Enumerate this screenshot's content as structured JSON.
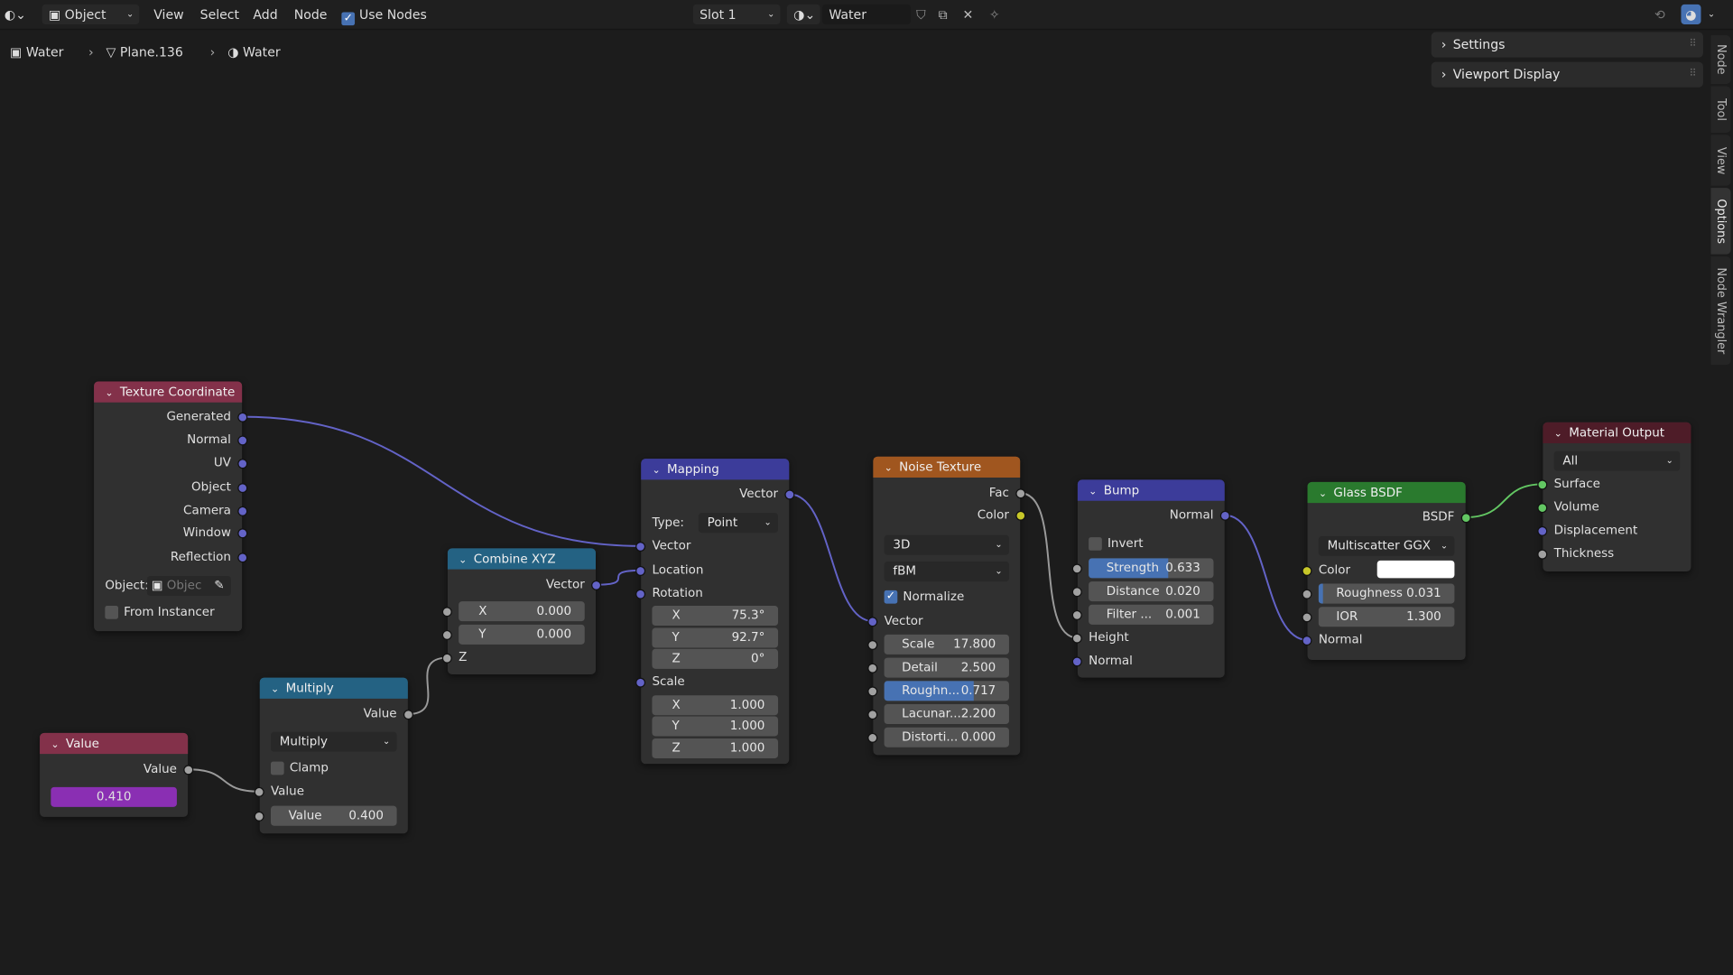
{
  "topbar": {
    "editor_type_icon": "node-editor-icon",
    "mode": "Object",
    "menus": [
      "View",
      "Select",
      "Add",
      "Node"
    ],
    "use_nodes_label": "Use Nodes",
    "use_nodes": true,
    "slot": "Slot 1",
    "material_name": "Water"
  },
  "breadcrumb": [
    "Water",
    "Plane.136",
    "Water"
  ],
  "sidebar": {
    "panels": [
      "Settings",
      "Viewport Display"
    ],
    "tabs": [
      "Node",
      "Tool",
      "View",
      "Options",
      "Node Wrangler"
    ],
    "active_tab": "Options"
  },
  "socket_colors": {
    "vector": "#6363c7",
    "float": "#a1a1a1",
    "color": "#c7c729",
    "shader": "#63c763"
  },
  "nodes": [
    {
      "id": "texcoord",
      "title": "Texture Coordinate",
      "color": "#83314a",
      "rows": [
        {
          "t": "out",
          "label": "Generated",
          "s": "vector"
        },
        {
          "t": "out",
          "label": "Normal",
          "s": "vector"
        },
        {
          "t": "out",
          "label": "UV",
          "s": "vector"
        },
        {
          "t": "out",
          "label": "Object",
          "s": "vector"
        },
        {
          "t": "out",
          "label": "Camera",
          "s": "vector"
        },
        {
          "t": "out",
          "label": "Window",
          "s": "vector"
        },
        {
          "t": "out",
          "label": "Reflection",
          "s": "vector"
        },
        {
          "t": "obj",
          "label": "Object:",
          "placeholder": "Objec"
        },
        {
          "t": "check",
          "label": "From Instancer",
          "checked": false
        }
      ]
    },
    {
      "id": "value",
      "title": "Value",
      "color": "#83314a",
      "rows": [
        {
          "t": "out",
          "label": "Value",
          "s": "float"
        },
        {
          "t": "vfield",
          "value": "0.410"
        }
      ]
    },
    {
      "id": "multiply",
      "title": "Multiply",
      "color": "#246283",
      "rows": [
        {
          "t": "out",
          "label": "Value",
          "s": "float"
        },
        {
          "t": "dd",
          "value": "Multiply"
        },
        {
          "t": "check",
          "label": "Clamp",
          "checked": false
        },
        {
          "t": "in",
          "label": "Value",
          "s": "float"
        },
        {
          "t": "field",
          "label": "Value",
          "value": "0.400",
          "s": "float"
        }
      ]
    },
    {
      "id": "combine",
      "title": "Combine XYZ",
      "color": "#246283",
      "rows": [
        {
          "t": "out",
          "label": "Vector",
          "s": "vector"
        },
        {
          "t": "field",
          "label": "X",
          "value": "0.000",
          "s": "float",
          "xyz": true
        },
        {
          "t": "field",
          "label": "Y",
          "value": "0.000",
          "s": "float",
          "xyz": true
        },
        {
          "t": "in",
          "label": "Z",
          "s": "float"
        }
      ]
    },
    {
      "id": "mapping",
      "title": "Mapping",
      "color": "#3c3c9a",
      "rows": [
        {
          "t": "out",
          "label": "Vector",
          "s": "vector"
        },
        {
          "t": "dd",
          "label": "Type:",
          "value": "Point"
        },
        {
          "t": "in",
          "label": "Vector",
          "s": "vector"
        },
        {
          "t": "in",
          "label": "Location",
          "s": "vector"
        },
        {
          "t": "in",
          "label": "Rotation",
          "s": "vector"
        },
        {
          "t": "field",
          "label": "X",
          "value": "75.3°",
          "xyz": true
        },
        {
          "t": "field",
          "label": "Y",
          "value": "92.7°",
          "xyz": true
        },
        {
          "t": "field",
          "label": "Z",
          "value": "0°",
          "xyz": true
        },
        {
          "t": "in",
          "label": "Scale",
          "s": "vector"
        },
        {
          "t": "field",
          "label": "X",
          "value": "1.000",
          "xyz": true
        },
        {
          "t": "field",
          "label": "Y",
          "value": "1.000",
          "xyz": true
        },
        {
          "t": "field",
          "label": "Z",
          "value": "1.000",
          "xyz": true
        }
      ]
    },
    {
      "id": "noise",
      "title": "Noise Texture",
      "color": "#a0561f",
      "rows": [
        {
          "t": "out",
          "label": "Fac",
          "s": "float"
        },
        {
          "t": "out",
          "label": "Color",
          "s": "color"
        },
        {
          "t": "dd",
          "value": "3D"
        },
        {
          "t": "dd",
          "value": "fBM"
        },
        {
          "t": "check",
          "label": "Normalize",
          "checked": true
        },
        {
          "t": "in",
          "label": "Vector",
          "s": "vector"
        },
        {
          "t": "field",
          "label": "Scale",
          "value": "17.800",
          "s": "float"
        },
        {
          "t": "field",
          "label": "Detail",
          "value": "2.500",
          "s": "float"
        },
        {
          "t": "field",
          "label": "Roughn...",
          "value": "0.717",
          "s": "float",
          "fill": 0.717
        },
        {
          "t": "field",
          "label": "Lacunar...",
          "value": "2.200",
          "s": "float"
        },
        {
          "t": "field",
          "label": "Distorti...",
          "value": "0.000",
          "s": "float"
        }
      ]
    },
    {
      "id": "bump",
      "title": "Bump",
      "color": "#3c3c9a",
      "rows": [
        {
          "t": "out",
          "label": "Normal",
          "s": "vector"
        },
        {
          "t": "check",
          "label": "Invert",
          "checked": false
        },
        {
          "t": "field",
          "label": "Strength",
          "value": "0.633",
          "s": "float",
          "fill": 0.633
        },
        {
          "t": "field",
          "label": "Distance",
          "value": "0.020",
          "s": "float"
        },
        {
          "t": "field",
          "label": "Filter ...",
          "value": "0.001",
          "s": "float"
        },
        {
          "t": "in",
          "label": "Height",
          "s": "float"
        },
        {
          "t": "in",
          "label": "Normal",
          "s": "vector"
        }
      ]
    },
    {
      "id": "glass",
      "title": "Glass BSDF",
      "color": "#2a7a2e",
      "rows": [
        {
          "t": "out",
          "label": "BSDF",
          "s": "shader"
        },
        {
          "t": "dd",
          "value": "Multiscatter GGX"
        },
        {
          "t": "color",
          "label": "Color",
          "s": "color",
          "swatch": "#ffffff"
        },
        {
          "t": "field",
          "label": "Roughness",
          "value": "0.031",
          "s": "float",
          "fill": 0.031
        },
        {
          "t": "field",
          "label": "IOR",
          "value": "1.300",
          "s": "float"
        },
        {
          "t": "in",
          "label": "Normal",
          "s": "vector"
        }
      ]
    },
    {
      "id": "output",
      "title": "Material Output",
      "color": "#4e1c28",
      "rows": [
        {
          "t": "dd",
          "value": "All"
        },
        {
          "t": "in",
          "label": "Surface",
          "s": "shader"
        },
        {
          "t": "in",
          "label": "Volume",
          "s": "shader"
        },
        {
          "t": "in",
          "label": "Displacement",
          "s": "vector"
        },
        {
          "t": "in",
          "label": "Thickness",
          "s": "float"
        }
      ]
    }
  ],
  "links": [
    {
      "from": [
        "texcoord",
        0
      ],
      "to": [
        "mapping",
        2
      ],
      "s": "vector"
    },
    {
      "from": [
        "combine",
        0
      ],
      "to": [
        "mapping",
        3
      ],
      "s": "vector"
    },
    {
      "from": [
        "multiply",
        0
      ],
      "to": [
        "combine",
        3
      ],
      "s": "float"
    },
    {
      "from": [
        "value",
        0
      ],
      "to": [
        "multiply",
        3
      ],
      "s": "float"
    },
    {
      "from": [
        "mapping",
        0
      ],
      "to": [
        "noise",
        5
      ],
      "s": "vector"
    },
    {
      "from": [
        "noise",
        0
      ],
      "to": [
        "bump",
        5
      ],
      "s": "float"
    },
    {
      "from": [
        "bump",
        0
      ],
      "to": [
        "glass",
        5
      ],
      "s": "vector"
    },
    {
      "from": [
        "glass",
        0
      ],
      "to": [
        "output",
        1
      ],
      "s": "shader"
    }
  ]
}
